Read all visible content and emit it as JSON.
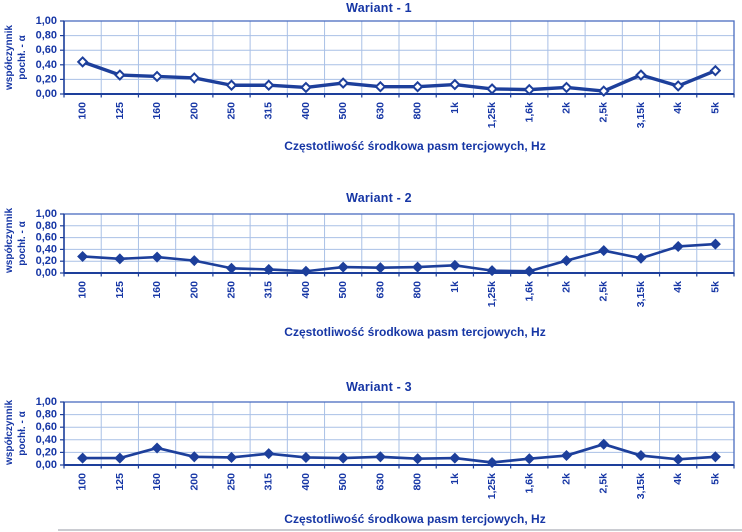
{
  "colors": {
    "text": "#1636a5",
    "series_line": "#1d3f9b",
    "gridline": "#a9c0e6",
    "plot_border": "#4a6cc0",
    "axis_line": "#1d3f9b",
    "background": "#ffffff"
  },
  "chart_data": [
    {
      "type": "line",
      "title": "Wariant - 1",
      "ylabel_line1": "współczynnik",
      "ylabel_line2": "pochł. - α",
      "xlabel": "Częstotliwość środkowa pasm tercjowych, Hz",
      "marker": "open-diamond",
      "legend": "none",
      "grid": true,
      "ylim": [
        0,
        1
      ],
      "ytick_labels": [
        "0,00",
        "0,20",
        "0,40",
        "0,60",
        "0,80",
        "1,00"
      ],
      "categories": [
        "100",
        "125",
        "160",
        "200",
        "250",
        "315",
        "400",
        "500",
        "630",
        "800",
        "1k",
        "1,25k",
        "1,6k",
        "2k",
        "2,5k",
        "3,15k",
        "4k",
        "5k"
      ],
      "values": [
        0.44,
        0.26,
        0.24,
        0.22,
        0.12,
        0.12,
        0.09,
        0.15,
        0.1,
        0.1,
        0.13,
        0.07,
        0.06,
        0.09,
        0.04,
        0.26,
        0.11,
        0.32
      ]
    },
    {
      "type": "line",
      "title": "Wariant - 2",
      "ylabel_line1": "współczynnik",
      "ylabel_line2": "pochł. - α",
      "xlabel": "Częstotliwość środkowa pasm tercjowych, Hz",
      "marker": "filled-diamond",
      "legend": "none",
      "grid": true,
      "ylim": [
        0,
        1
      ],
      "ytick_labels": [
        "0,00",
        "0,20",
        "0,40",
        "0,60",
        "0,80",
        "1,00"
      ],
      "categories": [
        "100",
        "125",
        "160",
        "200",
        "250",
        "315",
        "400",
        "500",
        "630",
        "800",
        "1k",
        "1,25k",
        "1,6k",
        "2k",
        "2,5k",
        "3,15k",
        "4k",
        "5k"
      ],
      "values": [
        0.28,
        0.24,
        0.27,
        0.21,
        0.08,
        0.06,
        0.03,
        0.1,
        0.09,
        0.1,
        0.13,
        0.04,
        0.03,
        0.21,
        0.38,
        0.25,
        0.45,
        0.49
      ]
    },
    {
      "type": "line",
      "title": "Wariant - 3",
      "ylabel_line1": "współczynnik",
      "ylabel_line2": "pochł. - α",
      "xlabel": "Częstotliwość środkowa pasm tercjowych, Hz",
      "marker": "filled-diamond",
      "legend": "none",
      "grid": true,
      "ylim": [
        0,
        1
      ],
      "ytick_labels": [
        "0,00",
        "0,20",
        "0,40",
        "0,60",
        "0,80",
        "1,00"
      ],
      "categories": [
        "100",
        "125",
        "160",
        "200",
        "250",
        "315",
        "400",
        "500",
        "630",
        "800",
        "1k",
        "1,25k",
        "1,6k",
        "2k",
        "2,5k",
        "3,15k",
        "4k",
        "5k"
      ],
      "values": [
        0.11,
        0.11,
        0.27,
        0.13,
        0.12,
        0.18,
        0.12,
        0.11,
        0.13,
        0.1,
        0.11,
        0.04,
        0.1,
        0.15,
        0.33,
        0.15,
        0.09,
        0.13
      ]
    }
  ]
}
